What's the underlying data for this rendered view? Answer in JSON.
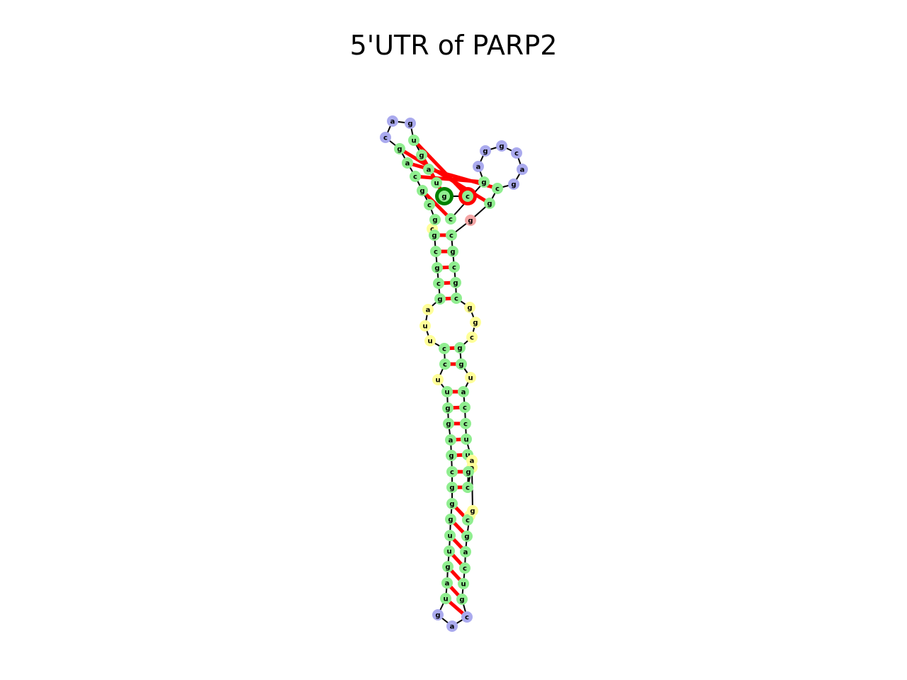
{
  "title": "5'UTR of PARP2",
  "colors": {
    "stem": "#90ee90",
    "internal_loop": "#ffff99",
    "hairpin_loop": "#aaaaee",
    "unpaired": "#f4a6a6",
    "start_marker": "#008000",
    "end_marker": "#ff0000",
    "base_pair": "#ff0000",
    "backbone": "#000000"
  },
  "legend_markers": [
    "c",
    "a"
  ],
  "nucleotides": [
    {
      "base": "c",
      "kind": "internal_loop"
    },
    {
      "base": "g",
      "kind": "stem"
    },
    {
      "base": "c",
      "kind": "stem"
    },
    {
      "base": "g",
      "kind": "stem"
    },
    {
      "base": "c",
      "kind": "stem"
    },
    {
      "base": "g",
      "kind": "stem"
    },
    {
      "base": "a",
      "kind": "internal_loop"
    },
    {
      "base": "u",
      "kind": "internal_loop"
    },
    {
      "base": "u",
      "kind": "internal_loop"
    },
    {
      "base": "c",
      "kind": "stem"
    },
    {
      "base": "c",
      "kind": "stem"
    },
    {
      "base": "u",
      "kind": "internal_loop"
    },
    {
      "base": "u",
      "kind": "stem"
    },
    {
      "base": "g",
      "kind": "stem"
    },
    {
      "base": "g",
      "kind": "stem"
    },
    {
      "base": "a",
      "kind": "stem"
    },
    {
      "base": "g",
      "kind": "stem"
    },
    {
      "base": "c",
      "kind": "stem"
    },
    {
      "base": "g",
      "kind": "stem"
    },
    {
      "base": "g",
      "kind": "stem"
    },
    {
      "base": "g",
      "kind": "stem"
    },
    {
      "base": "u",
      "kind": "stem"
    },
    {
      "base": "u",
      "kind": "stem"
    },
    {
      "base": "g",
      "kind": "stem"
    },
    {
      "base": "a",
      "kind": "stem"
    },
    {
      "base": "u",
      "kind": "stem"
    },
    {
      "base": "g",
      "kind": "hairpin_loop"
    },
    {
      "base": "a",
      "kind": "hairpin_loop"
    },
    {
      "base": "c",
      "kind": "hairpin_loop"
    },
    {
      "base": "g",
      "kind": "stem"
    },
    {
      "base": "u",
      "kind": "stem"
    },
    {
      "base": "c",
      "kind": "stem"
    },
    {
      "base": "a",
      "kind": "stem"
    },
    {
      "base": "g",
      "kind": "stem"
    },
    {
      "base": "u",
      "kind": "internal_loop"
    },
    {
      "base": "c",
      "kind": "stem"
    },
    {
      "base": "g",
      "kind": "internal_loop"
    },
    {
      "base": "a",
      "kind": "internal_loop"
    },
    {
      "base": "c",
      "kind": "stem"
    },
    {
      "base": "g",
      "kind": "stem"
    },
    {
      "base": "u",
      "kind": "stem"
    },
    {
      "base": "a",
      "kind": "internal_loop"
    },
    {
      "base": "u",
      "kind": "stem"
    },
    {
      "base": "c",
      "kind": "stem"
    },
    {
      "base": "c",
      "kind": "stem"
    },
    {
      "base": "a",
      "kind": "stem"
    },
    {
      "base": "u",
      "kind": "internal_loop"
    },
    {
      "base": "g",
      "kind": "stem"
    },
    {
      "base": "g",
      "kind": "stem"
    },
    {
      "base": "c",
      "kind": "internal_loop"
    },
    {
      "base": "g",
      "kind": "internal_loop"
    },
    {
      "base": "g",
      "kind": "internal_loop"
    },
    {
      "base": "c",
      "kind": "stem"
    },
    {
      "base": "g",
      "kind": "stem"
    },
    {
      "base": "c",
      "kind": "stem"
    },
    {
      "base": "g",
      "kind": "stem"
    },
    {
      "base": "c",
      "kind": "stem"
    },
    {
      "base": "g",
      "kind": "unpaired"
    },
    {
      "base": "g",
      "kind": "stem"
    },
    {
      "base": "c",
      "kind": "stem"
    },
    {
      "base": "g",
      "kind": "hairpin_loop"
    },
    {
      "base": "a",
      "kind": "hairpin_loop"
    },
    {
      "base": "c",
      "kind": "hairpin_loop"
    },
    {
      "base": "g",
      "kind": "hairpin_loop"
    },
    {
      "base": "g",
      "kind": "hairpin_loop"
    },
    {
      "base": "a",
      "kind": "hairpin_loop"
    },
    {
      "base": "g",
      "kind": "stem"
    },
    {
      "base": "c",
      "kind": "stem"
    },
    {
      "base": "g",
      "kind": "stem"
    },
    {
      "base": "c",
      "kind": "stem"
    },
    {
      "base": "g",
      "kind": "stem"
    },
    {
      "base": "c",
      "kind": "stem"
    },
    {
      "base": "a",
      "kind": "stem"
    },
    {
      "base": "g",
      "kind": "stem"
    },
    {
      "base": "c",
      "kind": "hairpin_loop"
    },
    {
      "base": "a",
      "kind": "hairpin_loop"
    },
    {
      "base": "g",
      "kind": "hairpin_loop"
    },
    {
      "base": "u",
      "kind": "stem"
    },
    {
      "base": "g",
      "kind": "stem"
    },
    {
      "base": "a",
      "kind": "stem"
    },
    {
      "base": "u",
      "kind": "stem"
    },
    {
      "base": "g",
      "kind": "stem"
    },
    {
      "base": "c",
      "kind": "stem"
    }
  ],
  "pairs": [
    [
      1,
      56
    ],
    [
      2,
      55
    ],
    [
      3,
      54
    ],
    [
      4,
      53
    ],
    [
      5,
      52
    ],
    [
      9,
      48
    ],
    [
      10,
      47
    ],
    [
      12,
      45
    ],
    [
      13,
      44
    ],
    [
      14,
      43
    ],
    [
      15,
      42
    ],
    [
      16,
      40
    ],
    [
      17,
      39
    ],
    [
      18,
      38
    ],
    [
      19,
      35
    ],
    [
      20,
      33
    ],
    [
      21,
      32
    ],
    [
      22,
      31
    ],
    [
      23,
      30
    ],
    [
      24,
      29
    ],
    [
      25,
      28
    ],
    [
      58,
      73
    ],
    [
      59,
      72
    ],
    [
      66,
      71
    ],
    [
      67,
      70
    ],
    [
      77,
      82
    ],
    [
      78,
      81
    ]
  ]
}
